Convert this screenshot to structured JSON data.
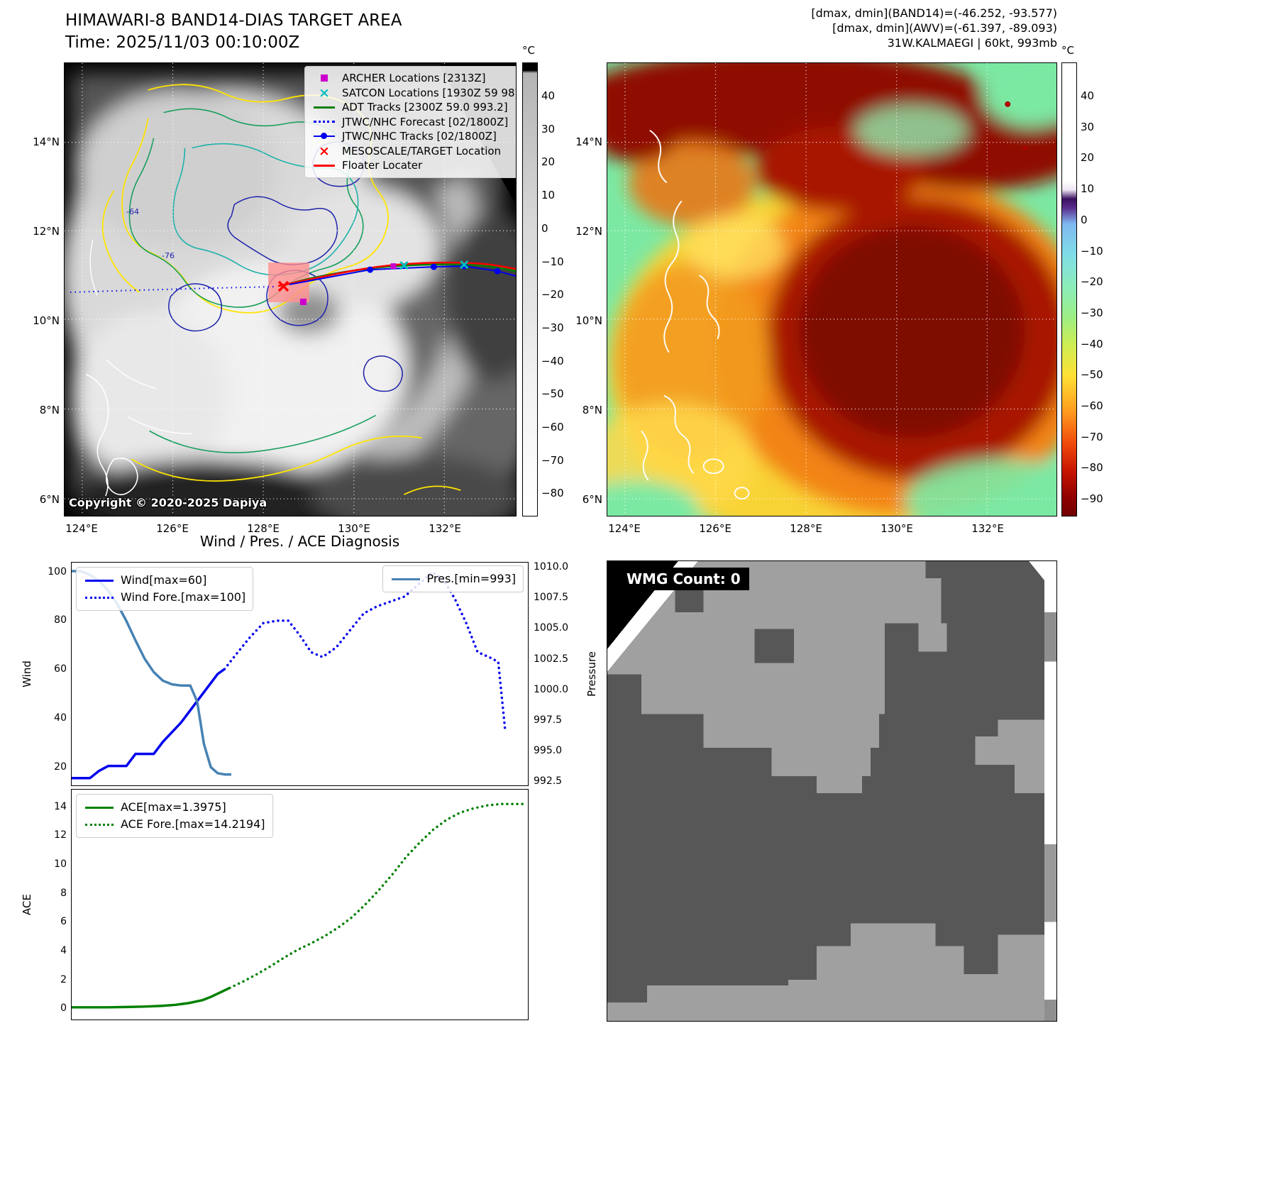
{
  "header": {
    "title": "HIMAWARI-8 BAND14-DIAS TARGET AREA",
    "time_line": "Time: 2025/11/03 00:10:00Z",
    "info_lines": [
      "[dmax, dmin](BAND14)=(-46.252, -93.577)",
      "[dmax, dmin](AWV)=(-61.397, -89.093)",
      "31W.KALMAEGI | 60kt, 993mb"
    ]
  },
  "left_map": {
    "x_ticks": [
      "124°E",
      "126°E",
      "128°E",
      "130°E",
      "132°E"
    ],
    "y_ticks": [
      "14°N",
      "12°N",
      "10°N",
      "8°N",
      "6°N"
    ],
    "colorbar_unit": "°C",
    "colorbar_ticks": [
      "40",
      "30",
      "20",
      "10",
      "0",
      "−10",
      "−20",
      "−30",
      "−40",
      "−50",
      "−60",
      "−70",
      "−80"
    ],
    "legend": {
      "items": [
        {
          "label": "ARCHER Locations [2313Z]",
          "marker": "square",
          "color": "#cc00cc"
        },
        {
          "label": "SATCON Locations [1930Z 59 987]",
          "marker": "x",
          "color": "#00bfbf"
        },
        {
          "label": "ADT Tracks [2300Z 59.0 993.2]",
          "marker": "line",
          "color": "#008000"
        },
        {
          "label": "JTWC/NHC Forecast [02/1800Z]",
          "marker": "dotted-line",
          "color": "#0000ee"
        },
        {
          "label": "JTWC/NHC Tracks [02/1800Z]",
          "marker": "line-dot",
          "color": "#0000ee"
        },
        {
          "label": "MESOSCALE/TARGET Location",
          "marker": "x",
          "color": "#ff0000"
        },
        {
          "label": "Floater Locater",
          "marker": "line",
          "color": "#ff0000"
        }
      ]
    },
    "contour_labels": [
      "-64",
      "-76"
    ],
    "copyright": "Copyright © 2020-2025 Dapiya"
  },
  "right_map": {
    "x_ticks": [
      "124°E",
      "126°E",
      "128°E",
      "130°E",
      "132°E"
    ],
    "y_ticks": [
      "14°N",
      "12°N",
      "10°N",
      "8°N",
      "6°N"
    ],
    "colorbar_unit": "°C",
    "colorbar_ticks": [
      "40",
      "30",
      "20",
      "10",
      "0",
      "−10",
      "−20",
      "−30",
      "−40",
      "−50",
      "−60",
      "−70",
      "−80",
      "−90"
    ]
  },
  "diagnosis": {
    "title": "Wind / Pres. / ACE Diagnosis",
    "wind_ylabel": "Wind",
    "pressure_ylabel": "Pressure",
    "ace_ylabel": "ACE"
  },
  "wmg": {
    "label": "WMG Count: 0"
  },
  "chart_data": [
    {
      "id": "wind",
      "type": "line",
      "title": "Wind / Pres. / ACE Diagnosis",
      "xlim": [
        0,
        100
      ],
      "ylim_left": [
        12,
        104
      ],
      "ylim_right": [
        992.1,
        1010.4
      ],
      "ylabel_left": "Wind",
      "ylabel_right": "Pressure",
      "yticks_left": [
        "100",
        "80",
        "60",
        "40",
        "20"
      ],
      "yticks_right": [
        "1010.0",
        "1007.5",
        "1005.0",
        "1002.5",
        "1000.0",
        "997.5",
        "995.0",
        "992.5"
      ],
      "legend_position": "upper left / upper right",
      "grid": false,
      "series": [
        {
          "name": "Wind[max=60]",
          "axis": "left",
          "style": "solid",
          "color": "#0000ee",
          "width": 3.5,
          "x": [
            0,
            2,
            4,
            6,
            8,
            10,
            12,
            14,
            16,
            18,
            20,
            22,
            24,
            26,
            28,
            30,
            32,
            33.5
          ],
          "y": [
            15,
            15,
            15,
            18,
            20,
            20,
            20,
            25,
            25,
            25,
            30,
            34,
            38,
            43,
            48,
            53,
            58,
            60
          ]
        },
        {
          "name": "Wind Fore.[max=100]",
          "axis": "left",
          "style": "dotted",
          "color": "#0000ee",
          "width": 3.5,
          "x": [
            33.5,
            36,
            39,
            42,
            45,
            47.5,
            50,
            52.5,
            55,
            58,
            61,
            64,
            67,
            70,
            73,
            76,
            79,
            81.5,
            84,
            86.5,
            89,
            91.5,
            93.5,
            95
          ],
          "y": [
            60,
            66,
            73,
            79,
            80,
            80,
            74,
            67,
            65,
            69,
            76,
            83,
            86,
            88,
            90,
            95,
            100,
            97,
            89,
            79,
            67,
            65,
            63,
            35
          ]
        },
        {
          "name": "Pres.[min=993]",
          "axis": "right",
          "style": "solid",
          "color": "#4682b4",
          "width": 3.5,
          "x": [
            0,
            2,
            4,
            6,
            8,
            10,
            12,
            14,
            16,
            18,
            20,
            22,
            24,
            26,
            27.5,
            29,
            30.5,
            32,
            33.5,
            35
          ],
          "y": [
            1009.7,
            1009.7,
            1009.4,
            1008.9,
            1008.1,
            1007.0,
            1005.6,
            1004.0,
            1002.5,
            1001.4,
            1000.7,
            1000.4,
            1000.3,
            1000.3,
            999.0,
            995.5,
            993.6,
            993.1,
            993.0,
            993.0
          ]
        }
      ]
    },
    {
      "id": "ace",
      "type": "line",
      "title": "ACE",
      "xlim": [
        0,
        101
      ],
      "ylim_left": [
        -0.8,
        15.2
      ],
      "ylabel_left": "ACE",
      "yticks_left": [
        "14",
        "12",
        "10",
        "8",
        "6",
        "4",
        "2",
        "0"
      ],
      "grid": false,
      "series": [
        {
          "name": "ACE[max=1.3975]",
          "axis": "left",
          "style": "solid",
          "color": "#008000",
          "width": 3.5,
          "x": [
            0,
            4,
            8,
            12,
            16,
            20,
            23,
            26,
            29,
            31,
            33,
            35
          ],
          "y": [
            0.05,
            0.05,
            0.05,
            0.07,
            0.1,
            0.15,
            0.22,
            0.35,
            0.55,
            0.8,
            1.1,
            1.4
          ]
        },
        {
          "name": "ACE Fore.[max=14.2194]",
          "axis": "left",
          "style": "dotted",
          "color": "#008000",
          "width": 3.5,
          "x": [
            35,
            38,
            41,
            44,
            47,
            50,
            53,
            56,
            59,
            62,
            65,
            68,
            71,
            74,
            77,
            80,
            83,
            86,
            89,
            92,
            95,
            98,
            100
          ],
          "y": [
            1.4,
            1.85,
            2.35,
            2.9,
            3.5,
            4.05,
            4.5,
            5.0,
            5.6,
            6.3,
            7.2,
            8.2,
            9.3,
            10.5,
            11.5,
            12.4,
            13.1,
            13.6,
            13.9,
            14.1,
            14.2,
            14.2,
            14.2
          ]
        }
      ]
    }
  ]
}
